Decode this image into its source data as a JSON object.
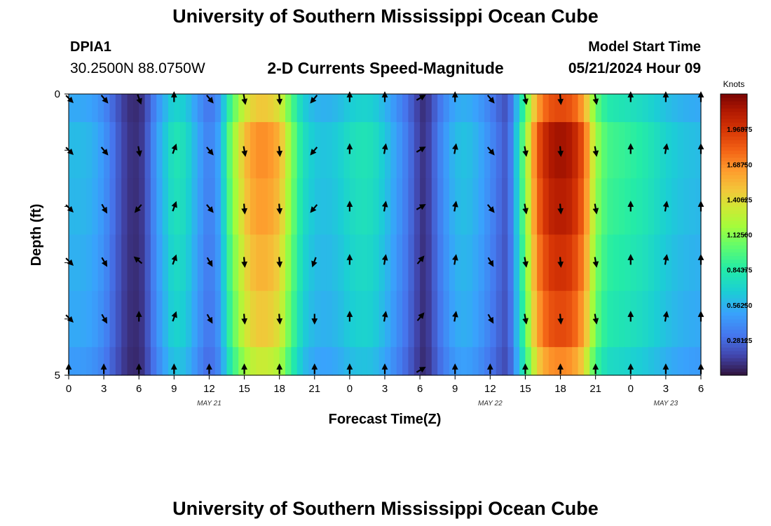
{
  "header": {
    "title": "University of Southern Mississippi Ocean Cube",
    "station_id": "DPIA1",
    "station_coords": "30.2500N  88.0750W",
    "chart_title": "2-D Currents Speed-Magnitude",
    "model_start_label": "Model Start Time",
    "model_start_value": "05/21/2024 Hour 09"
  },
  "footer": {
    "title": "University of Southern Mississippi Ocean Cube"
  },
  "chart_data": {
    "type": "heatmap",
    "title": "2-D Currents Speed-Magnitude",
    "xlabel": "Forecast Time(Z)",
    "ylabel": "Depth (ft)",
    "ylim": [
      0,
      5
    ],
    "x_hours_from_start": [
      0,
      54
    ],
    "x_ticks": [
      "0",
      "3",
      "6",
      "9",
      "12",
      "15",
      "18",
      "21",
      "0",
      "3",
      "6",
      "9",
      "12",
      "15",
      "18",
      "21",
      "0",
      "3",
      "6"
    ],
    "y_ticks": [
      "0",
      "5"
    ],
    "date_labels": [
      {
        "label": "MAY 21",
        "hour": 12
      },
      {
        "label": "MAY 22",
        "hour": 36
      },
      {
        "label": "MAY 23",
        "hour": 51
      }
    ],
    "colorbar": {
      "unit": "Knots",
      "range": [
        0,
        2.25
      ],
      "ticks": [
        "1.96875",
        "1.68750",
        "1.40625",
        "1.12500",
        "0.84375",
        "0.56250",
        "0.28125"
      ],
      "tick_values": [
        1.96875,
        1.6875,
        1.40625,
        1.125,
        0.84375,
        0.5625,
        0.28125
      ]
    },
    "speed_profile_hours": [
      0,
      1,
      2,
      3,
      4,
      5,
      6,
      6.5,
      7,
      8,
      9,
      10,
      11,
      12,
      13,
      13.5,
      14,
      15,
      16,
      17,
      18,
      19,
      20,
      21,
      22,
      23,
      24,
      25,
      26,
      27,
      28,
      29,
      30,
      30.5,
      31,
      32,
      33,
      34,
      35,
      36,
      37,
      37.5,
      38,
      39,
      40,
      41,
      42,
      43,
      44,
      45,
      46,
      47,
      48,
      49,
      50,
      51,
      52,
      53,
      54
    ],
    "speed_profile_knots": [
      0.55,
      0.55,
      0.52,
      0.42,
      0.25,
      0.1,
      0.08,
      0.15,
      0.3,
      0.55,
      0.75,
      0.7,
      0.48,
      0.32,
      0.5,
      0.85,
      1.05,
      1.4,
      1.55,
      1.55,
      1.45,
      1.05,
      0.72,
      0.6,
      0.58,
      0.62,
      0.7,
      0.74,
      0.72,
      0.6,
      0.45,
      0.3,
      0.12,
      0.08,
      0.2,
      0.4,
      0.55,
      0.58,
      0.5,
      0.38,
      0.24,
      0.2,
      0.45,
      1.05,
      1.7,
      1.95,
      2.0,
      1.95,
      1.7,
      1.1,
      0.88,
      0.85,
      0.82,
      0.78,
      0.72,
      0.65,
      0.6,
      0.57,
      0.55
    ],
    "depth_scale": [
      0.95,
      1.08,
      1.05,
      1.0,
      0.95,
      0.85
    ],
    "vector_hours": [
      0,
      3,
      6,
      9,
      12,
      15,
      18,
      21,
      24,
      27,
      30,
      33,
      36,
      39,
      42,
      45,
      48,
      51,
      54
    ],
    "vector_directions_deg": [
      [
        135,
        140,
        160,
        0,
        140,
        170,
        175,
        220,
        0,
        0,
        60,
        0,
        140,
        170,
        175,
        170,
        0,
        0,
        0
      ],
      [
        135,
        140,
        170,
        20,
        140,
        170,
        175,
        220,
        0,
        10,
        60,
        10,
        140,
        170,
        175,
        170,
        0,
        10,
        0
      ],
      [
        135,
        150,
        220,
        20,
        140,
        175,
        175,
        220,
        0,
        10,
        60,
        10,
        140,
        170,
        175,
        170,
        0,
        10,
        0
      ],
      [
        135,
        150,
        310,
        20,
        150,
        175,
        175,
        200,
        0,
        10,
        40,
        10,
        150,
        170,
        175,
        170,
        0,
        10,
        0
      ],
      [
        135,
        150,
        0,
        20,
        150,
        175,
        175,
        180,
        0,
        10,
        40,
        10,
        150,
        170,
        175,
        170,
        0,
        10,
        0
      ],
      [
        0,
        0,
        0,
        0,
        0,
        0,
        0,
        0,
        0,
        0,
        60,
        0,
        0,
        0,
        0,
        0,
        0,
        0,
        0
      ]
    ]
  }
}
